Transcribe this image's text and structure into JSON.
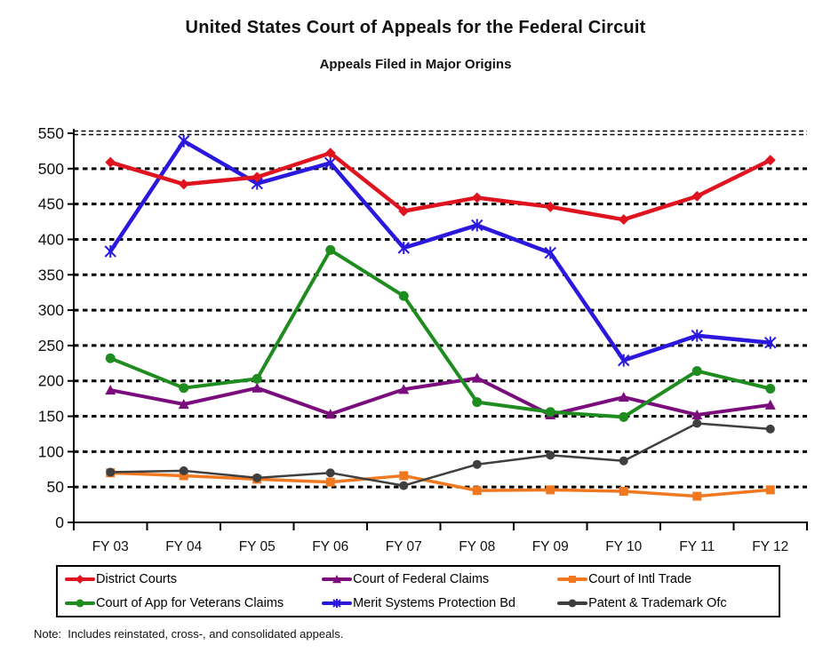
{
  "title": "United States Court of Appeals for the Federal Circuit",
  "subtitle": "Appeals Filed in Major Origins",
  "note": "Note:  Includes reinstated, cross-, and consolidated appeals.",
  "chart_data": {
    "type": "line",
    "title": "United States Court of Appeals for the Federal Circuit",
    "subtitle": "Appeals Filed in Major Origins",
    "categories": [
      "FY 03",
      "FY 04",
      "FY 05",
      "FY 06",
      "FY 07",
      "FY 08",
      "FY 09",
      "FY 10",
      "FY 11",
      "FY 12"
    ],
    "xlabel": "",
    "ylabel": "",
    "ylim": [
      0,
      550
    ],
    "ytick_step": 50,
    "yticks": [
      0,
      50,
      100,
      150,
      200,
      250,
      300,
      350,
      400,
      450,
      500,
      550
    ],
    "grid": "horizontal-dashed-black",
    "legend_position": "bottom-boxed-2rows",
    "series": [
      {
        "name": "District Courts",
        "color": "#e0141f",
        "marker": "diamond",
        "line_width": 4.5,
        "values": [
          509,
          478,
          488,
          522,
          440,
          459,
          446,
          428,
          461,
          512
        ]
      },
      {
        "name": "Court of Federal Claims",
        "color": "#7b0c7b",
        "marker": "triangle",
        "line_width": 4,
        "values": [
          187,
          167,
          190,
          153,
          188,
          204,
          152,
          177,
          152,
          166
        ]
      },
      {
        "name": "Court of Intl Trade",
        "color": "#f07820",
        "marker": "square",
        "line_width": 3.5,
        "values": [
          70,
          66,
          61,
          57,
          66,
          45,
          46,
          44,
          37,
          46
        ]
      },
      {
        "name": "Court of App for Veterans Claims",
        "color": "#1e8c1e",
        "marker": "circle",
        "line_width": 4,
        "values": [
          232,
          190,
          203,
          385,
          320,
          170,
          156,
          149,
          214,
          189
        ]
      },
      {
        "name": "Merit Systems Protection Bd",
        "color": "#2a19dd",
        "marker": "star",
        "line_width": 4.5,
        "values": [
          383,
          539,
          479,
          508,
          388,
          420,
          381,
          229,
          264,
          254
        ]
      },
      {
        "name": "Patent & Trademark Ofc",
        "color": "#3f3f3f",
        "marker": "circle",
        "line_width": 2.5,
        "values": [
          71,
          73,
          63,
          70,
          52,
          82,
          95,
          87,
          140,
          132
        ]
      }
    ],
    "legend_row_major_order": [
      "District Courts",
      "Court of Federal Claims",
      "Court of Intl Trade",
      "Court of App for Veterans Claims",
      "Merit Systems Protection Bd",
      "Patent & Trademark Ofc"
    ]
  }
}
